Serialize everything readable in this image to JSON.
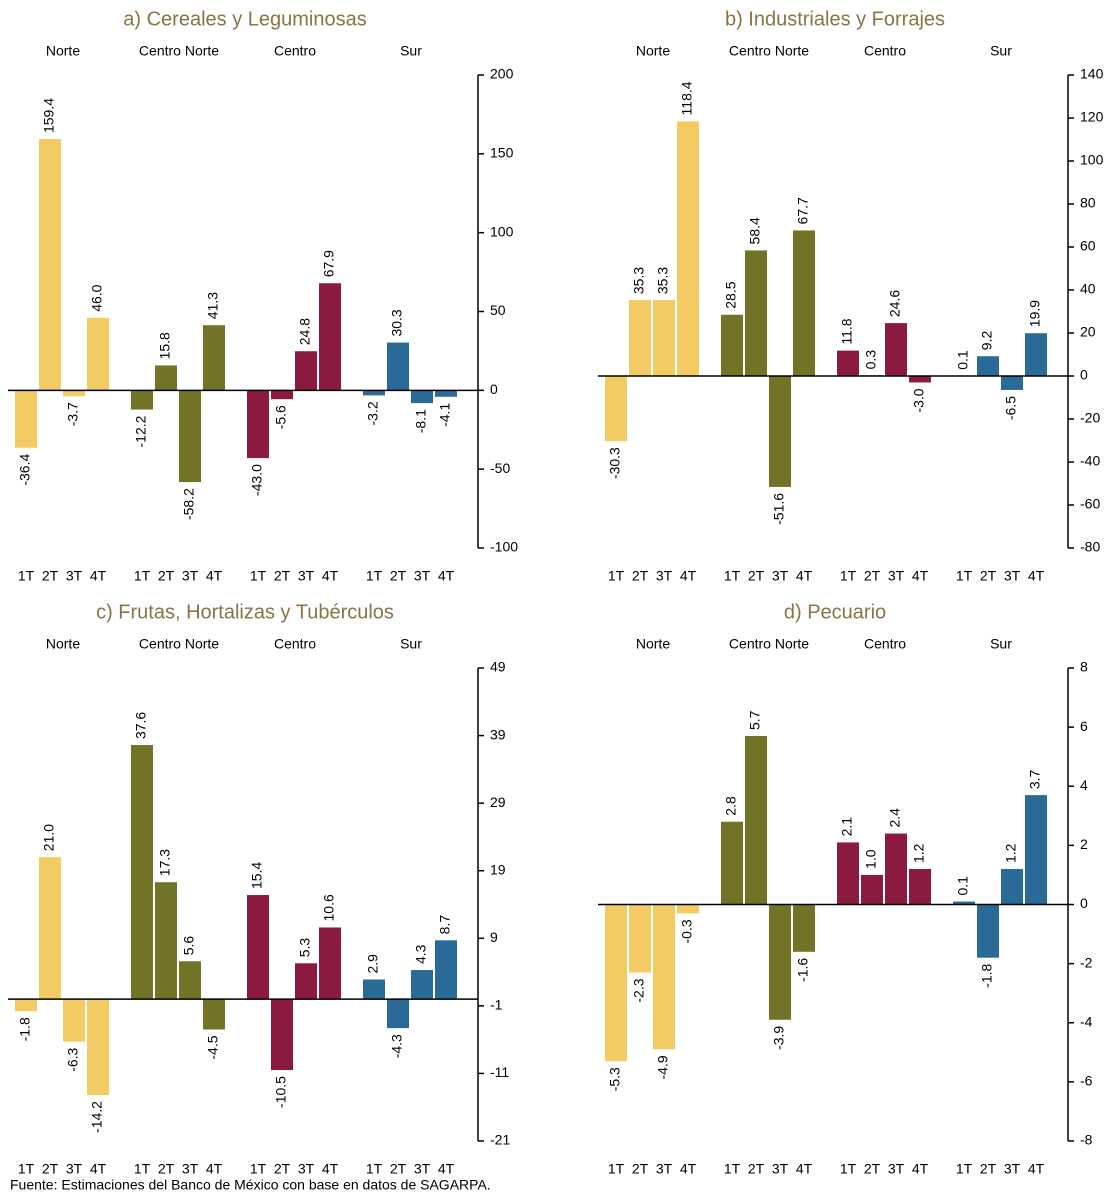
{
  "chart_data": [
    {
      "type": "bar",
      "title": "a) Cereales y Leguminosas",
      "categories": [
        "1T",
        "2T",
        "3T",
        "4T"
      ],
      "series": [
        {
          "name": "Norte",
          "color": "#f2cb63",
          "values": [
            -36.4,
            159.4,
            -3.7,
            46.0
          ],
          "value_labels": [
            "-36.4",
            "159.4",
            "-3.7",
            "46.0"
          ]
        },
        {
          "name": "Centro Norte",
          "color": "#737328",
          "values": [
            -12.2,
            15.8,
            -58.2,
            41.3
          ],
          "value_labels": [
            "-12.2",
            "15.8",
            "-58.2",
            "41.3"
          ]
        },
        {
          "name": "Centro",
          "color": "#8b1a3e",
          "values": [
            -43.0,
            -5.6,
            24.8,
            67.9
          ],
          "value_labels": [
            "-43.0",
            "-5.6",
            "24.8",
            "67.9"
          ]
        },
        {
          "name": "Sur",
          "color": "#2a6a96",
          "values": [
            -3.2,
            30.3,
            -8.1,
            -4.1
          ],
          "value_labels": [
            "-3.2",
            "30.3",
            "-8.1",
            "-4.1"
          ]
        }
      ],
      "ylim": [
        -100,
        200
      ],
      "yticks": [
        -100,
        -50,
        0,
        50,
        100,
        150,
        200
      ]
    },
    {
      "type": "bar",
      "title": "b) Industriales y Forrajes",
      "categories": [
        "1T",
        "2T",
        "3T",
        "4T"
      ],
      "series": [
        {
          "name": "Norte",
          "color": "#f2cb63",
          "values": [
            -30.3,
            35.3,
            35.3,
            118.4
          ],
          "value_labels": [
            "-30.3",
            "35.3",
            "35.3",
            "118.4"
          ]
        },
        {
          "name": "Centro Norte",
          "color": "#737328",
          "values": [
            28.5,
            58.4,
            -51.6,
            67.7
          ],
          "value_labels": [
            "28.5",
            "58.4",
            "-51.6",
            "67.7"
          ]
        },
        {
          "name": "Centro",
          "color": "#8b1a3e",
          "values": [
            11.8,
            0.3,
            24.6,
            -3.0
          ],
          "value_labels": [
            "11.8",
            "0.3",
            "24.6",
            "-3.0"
          ]
        },
        {
          "name": "Sur",
          "color": "#2a6a96",
          "values": [
            0.1,
            9.2,
            -6.5,
            19.9
          ],
          "value_labels": [
            "0.1",
            "9.2",
            "-6.5",
            "19.9"
          ]
        }
      ],
      "ylim": [
        -80,
        140
      ],
      "yticks": [
        -80,
        -60,
        -40,
        -20,
        0,
        20,
        40,
        60,
        80,
        100,
        120,
        140
      ]
    },
    {
      "type": "bar",
      "title": "c) Frutas, Hortalizas y Tubérculos",
      "categories": [
        "1T",
        "2T",
        "3T",
        "4T"
      ],
      "series": [
        {
          "name": "Norte",
          "color": "#f2cb63",
          "values": [
            -1.8,
            21.0,
            -6.3,
            -14.2
          ],
          "value_labels": [
            "-1.8",
            "21.0",
            "-6.3",
            "-14.2"
          ]
        },
        {
          "name": "Centro Norte",
          "color": "#737328",
          "values": [
            37.6,
            17.3,
            5.6,
            -4.5
          ],
          "value_labels": [
            "37.6",
            "17.3",
            "5.6",
            "-4.5"
          ]
        },
        {
          "name": "Centro",
          "color": "#8b1a3e",
          "values": [
            15.4,
            -10.5,
            5.3,
            10.6
          ],
          "value_labels": [
            "15.4",
            "-10.5",
            "5.3",
            "10.6"
          ]
        },
        {
          "name": "Sur",
          "color": "#2a6a96",
          "values": [
            2.9,
            -4.3,
            4.3,
            8.7
          ],
          "value_labels": [
            "2.9",
            "-4.3",
            "4.3",
            "8.7"
          ]
        }
      ],
      "ylim": [
        -21,
        49
      ],
      "yticks": [
        -21,
        -11,
        -1,
        9,
        19,
        29,
        39,
        49
      ]
    },
    {
      "type": "bar",
      "title": "d) Pecuario",
      "categories": [
        "1T",
        "2T",
        "3T",
        "4T"
      ],
      "series": [
        {
          "name": "Norte",
          "color": "#f2cb63",
          "values": [
            -5.3,
            -2.3,
            -4.9,
            -0.3
          ],
          "value_labels": [
            "-5.3",
            "-2.3",
            "-4.9",
            "-0.3"
          ]
        },
        {
          "name": "Centro Norte",
          "color": "#737328",
          "values": [
            2.8,
            5.7,
            -3.9,
            -1.6
          ],
          "value_labels": [
            "2.8",
            "5.7",
            "-3.9",
            "-1.6"
          ]
        },
        {
          "name": "Centro",
          "color": "#8b1a3e",
          "values": [
            2.1,
            1.0,
            2.4,
            1.2
          ],
          "value_labels": [
            "2.1",
            "1.0",
            "2.4",
            "1.2"
          ]
        },
        {
          "name": "Sur",
          "color": "#2a6a96",
          "values": [
            0.1,
            -1.8,
            1.2,
            3.7
          ],
          "value_labels": [
            "0.1",
            "-1.8",
            "1.2",
            "3.7"
          ]
        }
      ],
      "ylim": [
        -8,
        8
      ],
      "yticks": [
        -8,
        -6,
        -4,
        -2,
        0,
        2,
        4,
        6,
        8
      ]
    }
  ],
  "footer": {
    "source": "Fuente: Estimaciones del Banco de México con base en datos de SAGARPA."
  }
}
